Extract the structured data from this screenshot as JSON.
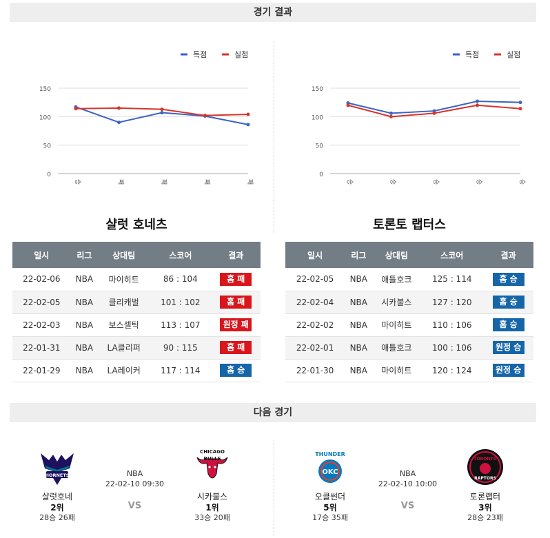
{
  "sections": {
    "results_title": "경기 결과",
    "next_title": "다음 경기"
  },
  "legend": {
    "scored": "득점",
    "conceded": "실점"
  },
  "colors": {
    "scored": "#3c62c4",
    "conceded": "#d8342a",
    "lose": "#d9161c",
    "win": "#1565a8"
  },
  "chart_data": [
    {
      "type": "line",
      "categories": [
        "승",
        "패",
        "패",
        "패",
        "패"
      ],
      "yticks": [
        0,
        50,
        100,
        150
      ],
      "ylim": [
        0,
        150
      ],
      "grid": true,
      "legend_position": "top-right",
      "series": [
        {
          "name": "득점",
          "values": [
            117,
            90,
            107,
            101,
            86
          ]
        },
        {
          "name": "실점",
          "values": [
            114,
            115,
            113,
            102,
            104
          ]
        }
      ]
    },
    {
      "type": "line",
      "categories": [
        "승",
        "승",
        "승",
        "승",
        "승"
      ],
      "yticks": [
        0,
        50,
        100,
        150
      ],
      "ylim": [
        0,
        150
      ],
      "grid": true,
      "legend_position": "top-right",
      "series": [
        {
          "name": "득점",
          "values": [
            124,
            106,
            110,
            127,
            125
          ]
        },
        {
          "name": "실점",
          "values": [
            120,
            100,
            106,
            120,
            114
          ]
        }
      ]
    }
  ],
  "tables": {
    "headers": [
      "일시",
      "리그",
      "상대팀",
      "스코어",
      "결과"
    ],
    "left": {
      "title": "샬럿 호네츠",
      "rows": [
        {
          "date": "22-02-06",
          "league": "NBA",
          "opponent": "마이히트",
          "score": "86 : 104",
          "result": "홈 패",
          "win": false
        },
        {
          "date": "22-02-05",
          "league": "NBA",
          "opponent": "클리캐벌",
          "score": "101 : 102",
          "result": "홈 패",
          "win": false
        },
        {
          "date": "22-02-03",
          "league": "NBA",
          "opponent": "보스셀틱",
          "score": "113 : 107",
          "result": "원정 패",
          "win": false
        },
        {
          "date": "22-01-31",
          "league": "NBA",
          "opponent": "LA클리퍼",
          "score": "90 : 115",
          "result": "홈 패",
          "win": false
        },
        {
          "date": "22-01-29",
          "league": "NBA",
          "opponent": "LA레이커",
          "score": "117 : 114",
          "result": "홈 승",
          "win": true
        }
      ]
    },
    "right": {
      "title": "토론토 랩터스",
      "rows": [
        {
          "date": "22-02-05",
          "league": "NBA",
          "opponent": "애틀호크",
          "score": "125 : 114",
          "result": "홈 승",
          "win": true
        },
        {
          "date": "22-02-04",
          "league": "NBA",
          "opponent": "시카불스",
          "score": "127 : 120",
          "result": "홈 승",
          "win": true
        },
        {
          "date": "22-02-02",
          "league": "NBA",
          "opponent": "마이히트",
          "score": "110 : 106",
          "result": "홈 승",
          "win": true
        },
        {
          "date": "22-02-01",
          "league": "NBA",
          "opponent": "애틀호크",
          "score": "100 : 106",
          "result": "원정 승",
          "win": true
        },
        {
          "date": "22-01-30",
          "league": "NBA",
          "opponent": "마이히트",
          "score": "120 : 124",
          "result": "원정 승",
          "win": true
        }
      ]
    }
  },
  "next": [
    {
      "league": "NBA",
      "datetime": "22-02-10 09:30",
      "vs": "VS",
      "home": {
        "name": "샬럿호네",
        "rank": "2위",
        "record": "28승 26패",
        "logo_icon": "hornets-logo-icon",
        "logo_text": "HORNETS"
      },
      "away": {
        "name": "시카불스",
        "rank": "1위",
        "record": "33승 20패",
        "logo_icon": "bulls-logo-icon",
        "logo_text": "CHICAGO BULLS"
      }
    },
    {
      "league": "NBA",
      "datetime": "22-02-10 10:00",
      "vs": "VS",
      "home": {
        "name": "오클썬더",
        "rank": "5위",
        "record": "17승 35패",
        "logo_icon": "thunder-logo-icon",
        "logo_text": "THUNDER OKC"
      },
      "away": {
        "name": "토론랩터",
        "rank": "3위",
        "record": "28승 23패",
        "logo_icon": "raptors-logo-icon",
        "logo_text": "TORONTO RAPTORS"
      }
    }
  ]
}
